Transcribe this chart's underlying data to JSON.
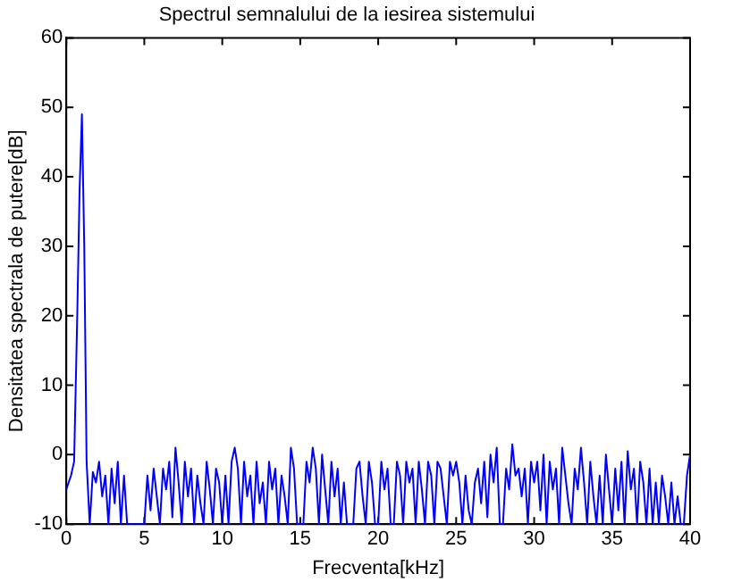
{
  "chart_data": {
    "type": "line",
    "title": "Spectrul semnalului de la iesirea sistemului",
    "xlabel": "Frecventa[kHz]",
    "ylabel": "Densitatea spectrala de putere[dB]",
    "xlim": [
      0,
      40
    ],
    "xticks": [
      0,
      5,
      10,
      15,
      20,
      25,
      30,
      35,
      40
    ],
    "ylim": [
      -10,
      60
    ],
    "yticks": [
      -10,
      0,
      10,
      20,
      30,
      40,
      50,
      60
    ],
    "grid": false,
    "legend": false,
    "marker": "none",
    "line_style": "solid",
    "series": [
      {
        "color": "#0000ff",
        "x": [
          0,
          0.3,
          0.5,
          0.7,
          0.85,
          1.0,
          1.15,
          1.3,
          1.5,
          1.7,
          1.9,
          2.1,
          2.3,
          2.5,
          2.7,
          2.9,
          3.1,
          3.3,
          3.5,
          3.7,
          3.9,
          4.2,
          4.6,
          5.0,
          5.2,
          5.4,
          5.6,
          5.8,
          6.0,
          6.2,
          6.4,
          6.6,
          6.8,
          7.0,
          7.2,
          7.4,
          7.6,
          7.8,
          8.0,
          8.2,
          8.4,
          8.6,
          8.8,
          9.0,
          9.2,
          9.4,
          9.6,
          9.8,
          10.0,
          10.2,
          10.4,
          10.6,
          10.8,
          11.0,
          11.2,
          11.4,
          11.6,
          11.8,
          12.0,
          12.2,
          12.4,
          12.6,
          12.8,
          13.0,
          13.2,
          13.4,
          13.6,
          13.8,
          14.0,
          14.2,
          14.4,
          14.6,
          14.8,
          15.2,
          15.4,
          15.6,
          15.8,
          16.0,
          16.2,
          16.4,
          16.6,
          16.8,
          17.0,
          17.2,
          17.4,
          17.6,
          17.8,
          18.0,
          18.4,
          18.6,
          18.8,
          19.0,
          19.2,
          19.4,
          19.6,
          19.8,
          20.0,
          20.2,
          20.4,
          20.6,
          20.8,
          21.0,
          21.2,
          21.4,
          21.6,
          21.8,
          22.0,
          22.2,
          22.4,
          22.6,
          22.8,
          23.0,
          23.2,
          23.4,
          23.6,
          23.8,
          24.0,
          24.2,
          24.4,
          24.6,
          24.8,
          25.0,
          25.2,
          25.4,
          25.6,
          25.8,
          26.0,
          26.2,
          26.4,
          26.6,
          26.8,
          27.0,
          27.2,
          27.4,
          27.6,
          27.8,
          28.0,
          28.2,
          28.4,
          28.6,
          28.8,
          29.0,
          29.2,
          29.4,
          29.6,
          29.8,
          30.0,
          30.2,
          30.4,
          30.6,
          30.8,
          31.0,
          31.2,
          31.4,
          31.6,
          31.8,
          32.0,
          32.2,
          32.4,
          32.6,
          32.8,
          33.0,
          33.2,
          33.4,
          33.6,
          33.8,
          34.0,
          34.2,
          34.4,
          34.6,
          34.8,
          35.0,
          35.2,
          35.4,
          35.6,
          35.8,
          36.0,
          36.2,
          36.4,
          36.6,
          36.8,
          37.0,
          37.2,
          37.4,
          37.6,
          37.8,
          38.0,
          38.2,
          38.4,
          38.6,
          38.8,
          39.0,
          39.2,
          39.4,
          39.6,
          39.8,
          40
        ],
        "values": [
          -5,
          -3,
          -1,
          20,
          38,
          49,
          30,
          -1,
          -10,
          -2.5,
          -4,
          -1,
          -6,
          -3,
          -10,
          -2,
          -7,
          -1,
          -10,
          -3,
          -10,
          -10,
          -10,
          -10,
          -3,
          -8,
          -2,
          -6,
          -10,
          -2,
          -5,
          -1,
          -9,
          1,
          -4,
          -10,
          -1,
          -6,
          -2,
          -10,
          -3,
          -7,
          -10,
          -1,
          -5,
          -10,
          -2,
          -4,
          -10,
          -3,
          -10,
          -1,
          1,
          -2,
          -10,
          -1,
          -6,
          -3,
          -10,
          -1,
          -7,
          -4,
          -10,
          -1,
          -5,
          -2,
          -10,
          -3,
          -6,
          -10,
          1,
          -2,
          -10,
          -10,
          -1,
          -4,
          1,
          -2,
          -10,
          0,
          -5,
          -10,
          -1,
          -6,
          -2,
          -10,
          -4,
          -10,
          -10,
          -2,
          -1,
          -6,
          -10,
          -1,
          -4,
          -10,
          -10,
          -1,
          -5,
          -2,
          -10,
          -10,
          -1,
          -3,
          -10,
          -1,
          -4,
          -2,
          -10,
          -1,
          -5,
          -10,
          -1,
          -3,
          -10,
          -1,
          -2,
          -6,
          -10,
          -1,
          -3,
          -1,
          -4,
          -10,
          -3,
          -8,
          -10,
          -4,
          -2,
          -7,
          -1,
          -9,
          0,
          -4,
          1,
          -10,
          -10,
          -2,
          -5,
          1.5,
          -3,
          -2,
          -6,
          -2,
          -10,
          -1,
          -4,
          -1,
          -8,
          0,
          -10,
          -1,
          -5,
          -2,
          -10,
          1,
          -3,
          -7,
          -10,
          -2,
          -5,
          1,
          -4,
          -10,
          -1,
          -6,
          -10,
          -3,
          -10,
          0,
          -5,
          -10,
          -2,
          -8,
          -1,
          -10,
          0.5,
          -5,
          -2,
          -10,
          -1,
          -4,
          -10,
          -2,
          -10,
          -4,
          -10,
          -3,
          -6,
          -10,
          -4,
          -10,
          -6,
          -10,
          -10,
          -3,
          0
        ]
      }
    ]
  }
}
